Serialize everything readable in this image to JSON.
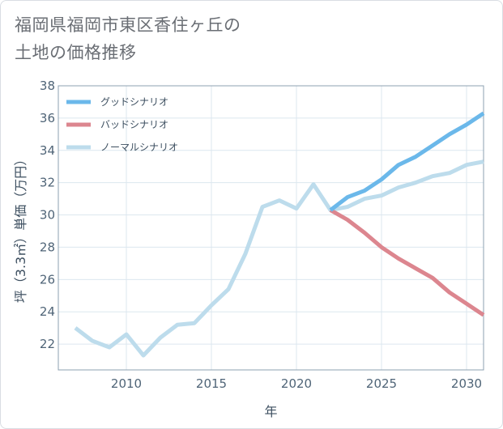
{
  "title_lines": [
    "福岡県福岡市東区香住ヶ丘の",
    "土地の価格推移"
  ],
  "chart_data": {
    "type": "line",
    "xlabel": "年",
    "ylabel": "坪（3.3㎡）単価（万円）",
    "xlim": [
      2006,
      2031
    ],
    "ylim": [
      20.4,
      38
    ],
    "x_ticks": [
      2010,
      2015,
      2020,
      2025,
      2030
    ],
    "y_ticks": [
      22,
      24,
      26,
      28,
      30,
      32,
      34,
      36,
      38
    ],
    "grid": true,
    "legend_position": "top-left",
    "series": [
      {
        "name": "グッドシナリオ",
        "color": "#6bb8ea",
        "x": [
          2022,
          2023,
          2024,
          2025,
          2026,
          2027,
          2028,
          2029,
          2030,
          2031
        ],
        "values": [
          30.3,
          31.1,
          31.5,
          32.2,
          33.1,
          33.6,
          34.3,
          35.0,
          35.6,
          36.3
        ]
      },
      {
        "name": "バッドシナリオ",
        "color": "#dc868f",
        "x": [
          2022,
          2023,
          2024,
          2025,
          2026,
          2027,
          2028,
          2029,
          2030,
          2031
        ],
        "values": [
          30.3,
          29.7,
          28.9,
          28.0,
          27.3,
          26.7,
          26.1,
          25.2,
          24.5,
          23.8
        ]
      },
      {
        "name": "ノーマルシナリオ",
        "color": "#bddcec",
        "x": [
          2007,
          2008,
          2009,
          2010,
          2011,
          2012,
          2013,
          2014,
          2015,
          2016,
          2017,
          2018,
          2019,
          2020,
          2021,
          2022,
          2023,
          2024,
          2025,
          2026,
          2027,
          2028,
          2029,
          2030,
          2031
        ],
        "values": [
          23.0,
          22.2,
          21.8,
          22.6,
          21.3,
          22.4,
          23.2,
          23.3,
          24.4,
          25.4,
          27.6,
          30.5,
          30.9,
          30.4,
          31.9,
          30.3,
          30.5,
          31.0,
          31.2,
          31.7,
          32.0,
          32.4,
          32.6,
          33.1,
          33.3
        ]
      }
    ]
  }
}
